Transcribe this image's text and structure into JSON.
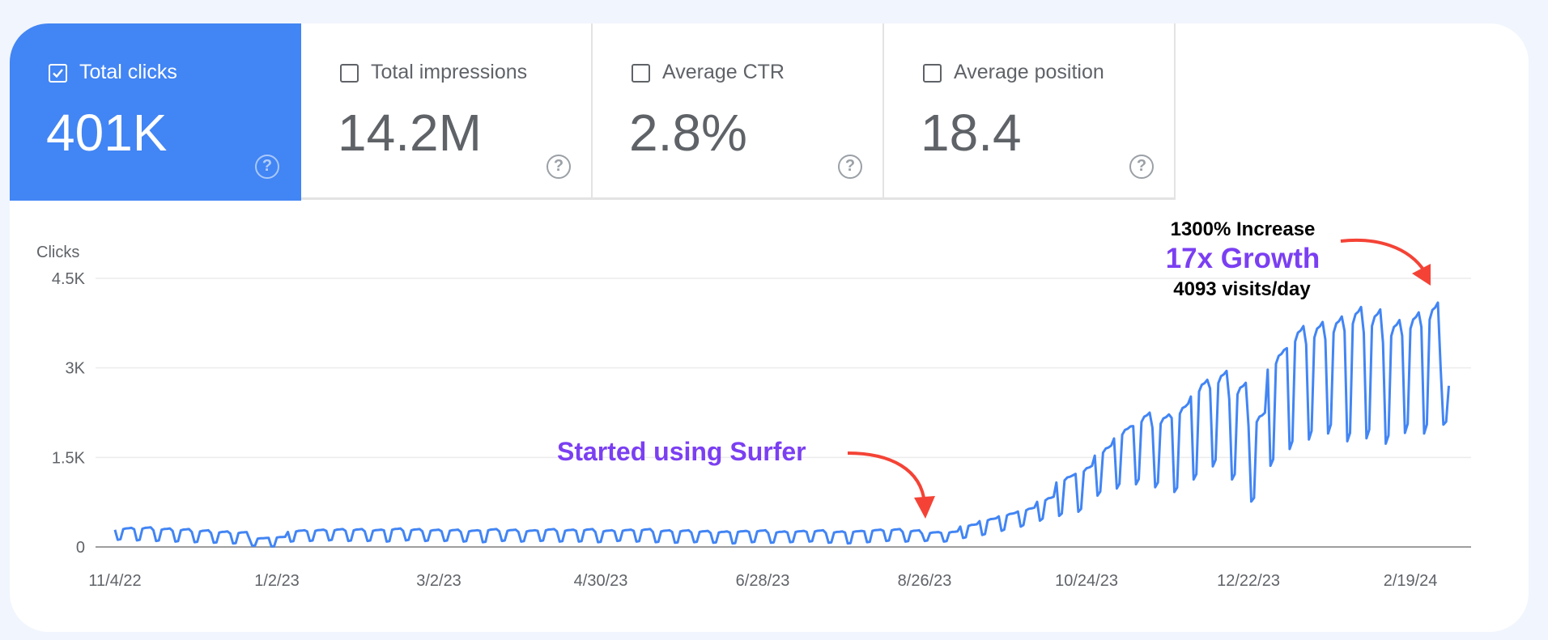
{
  "metrics": [
    {
      "label": "Total clicks",
      "value": "401K",
      "checked": true
    },
    {
      "label": "Total impressions",
      "value": "14.2M",
      "checked": false
    },
    {
      "label": "Average CTR",
      "value": "2.8%",
      "checked": false
    },
    {
      "label": "Average position",
      "value": "18.4",
      "checked": false
    }
  ],
  "help_glyph": "?",
  "colors": {
    "accent": "#4285f4",
    "line": "#4285f4",
    "annotation_purple": "#7b3ff2",
    "arrow": "#f44336",
    "background": "#f1f5fd"
  },
  "chart_data": {
    "type": "line",
    "ylabel": "Clicks",
    "ylim": [
      0,
      4500
    ],
    "yticks": [
      {
        "v": 0,
        "label": "0"
      },
      {
        "v": 1500,
        "label": "1.5K"
      },
      {
        "v": 3000,
        "label": "3K"
      },
      {
        "v": 4500,
        "label": "4.5K"
      }
    ],
    "xtick_labels": [
      "11/4/22",
      "1/2/23",
      "3/2/23",
      "4/30/23",
      "6/28/23",
      "8/26/23",
      "10/24/23",
      "12/22/23",
      "2/19/24"
    ],
    "xtick_interval_days": 59,
    "start_date": "11/4/22",
    "series_note": "daily clicks, encoded as weekly high (weekday) and low (weekend) values starting 11/4/22, plus final daily values",
    "weekly_high": [
      320,
      330,
      310,
      300,
      280,
      260,
      250,
      150,
      170,
      280,
      290,
      300,
      300,
      290,
      310,
      300,
      290,
      290,
      280,
      300,
      290,
      280,
      300,
      290,
      300,
      280,
      290,
      300,
      280,
      280,
      270,
      260,
      270,
      280,
      260,
      270,
      280,
      260,
      270,
      290,
      300,
      280,
      250,
      260,
      380,
      480,
      570,
      660,
      840,
      1200,
      1360,
      1700,
      2020,
      2250,
      2220,
      2400,
      2800,
      2950,
      2750,
      2250,
      3300,
      3700,
      3770,
      3860,
      4020,
      3980,
      3800,
      3930,
      4093
    ],
    "weekly_low": [
      120,
      110,
      100,
      90,
      80,
      70,
      60,
      20,
      10,
      90,
      100,
      110,
      100,
      100,
      90,
      110,
      100,
      100,
      90,
      80,
      100,
      90,
      100,
      90,
      90,
      80,
      100,
      90,
      80,
      70,
      80,
      70,
      60,
      80,
      70,
      80,
      90,
      70,
      60,
      80,
      100,
      90,
      100,
      90,
      150,
      200,
      270,
      340,
      440,
      520,
      590,
      860,
      980,
      1050,
      1000,
      920,
      1130,
      1350,
      1130,
      760,
      1360,
      1640,
      1800,
      1900,
      1770,
      1820,
      1730,
      1910,
      1900
    ],
    "tail_values": [
      3000,
      2050,
      2100,
      2700
    ],
    "annotations": {
      "start": "Started using Surfer",
      "increase": "1300% Increase",
      "growth": "17x Growth",
      "visits": "4093 visits/day"
    }
  }
}
